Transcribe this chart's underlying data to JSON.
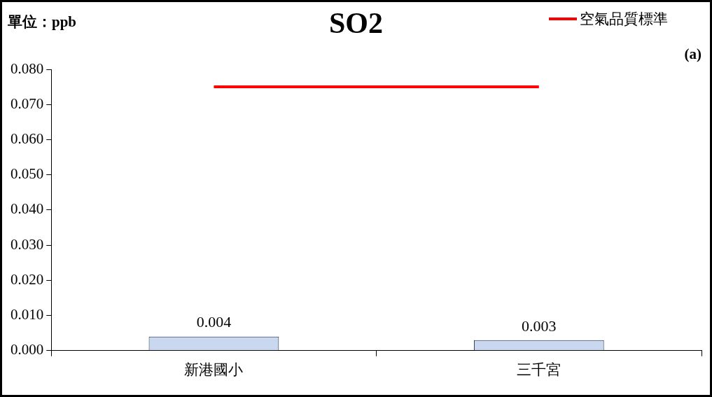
{
  "chart_data": {
    "type": "bar",
    "title": "SO2",
    "ylabel": "單位：ppb",
    "annotations": [
      "(a)"
    ],
    "categories": [
      "新港國小",
      "三千宮"
    ],
    "series": [
      {
        "color": "#c9d8ee",
        "values": [
          0.004,
          0.003
        ],
        "value_labels": [
          "0.004",
          "0.003"
        ]
      },
      {
        "type": "line",
        "name": "空氣品質標準",
        "color": "#ff0000",
        "values": [
          0.075,
          0.075
        ]
      }
    ],
    "ylim": [
      0,
      0.08
    ],
    "yticks": [
      {
        "value": 0,
        "label": "0.000"
      },
      {
        "value": 0.01,
        "label": "0.010"
      },
      {
        "value": 0.02,
        "label": "0.020"
      },
      {
        "value": 0.03,
        "label": "0.030"
      },
      {
        "value": 0.04,
        "label": "0.040"
      },
      {
        "value": 0.05,
        "label": "0.050"
      },
      {
        "value": 0.06,
        "label": "0.060"
      },
      {
        "value": 0.07,
        "label": "0.070"
      },
      {
        "value": 0.08,
        "label": "0.080"
      }
    ],
    "grid": false,
    "legend": "top right",
    "marker": "none",
    "line_style": "solid"
  }
}
